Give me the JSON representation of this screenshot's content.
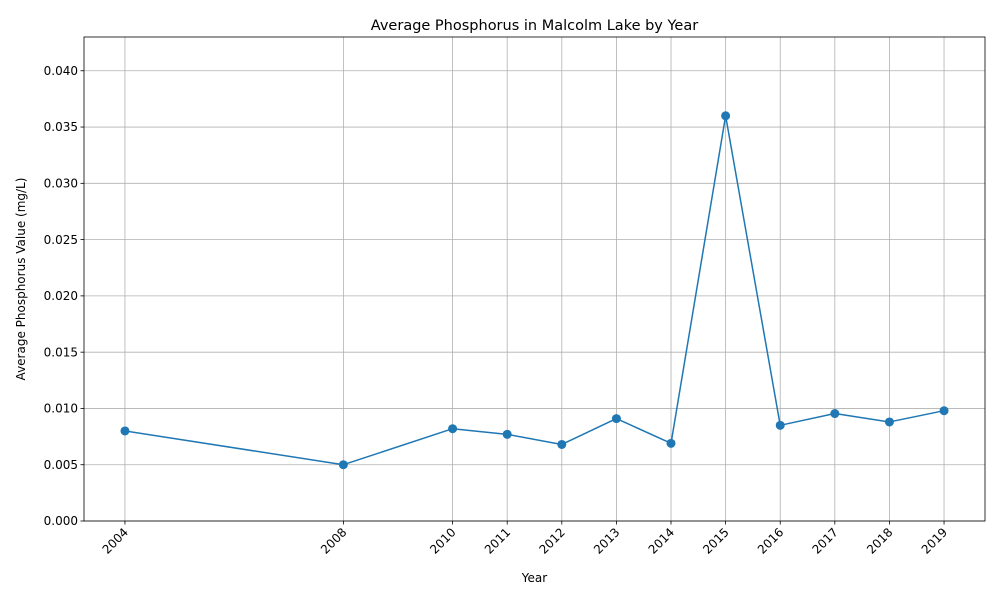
{
  "chart_data": {
    "type": "line",
    "title": "Average Phosphorus in Malcolm Lake by Year",
    "xlabel": "Year",
    "ylabel": "Average Phosphorus Value (mg/L)",
    "x": [
      2004,
      2008,
      2010,
      2011,
      2012,
      2013,
      2014,
      2015,
      2016,
      2017,
      2018,
      2019
    ],
    "x_tick_labels": [
      "2004",
      "2008",
      "2010",
      "2011",
      "2012",
      "2013",
      "2014",
      "2015",
      "2016",
      "2017",
      "2018",
      "2019"
    ],
    "series": [
      {
        "values": [
          0.008,
          0.005,
          0.0082,
          0.0077,
          0.0068,
          0.0091,
          0.0069,
          0.036,
          0.0085,
          0.00955,
          0.0088,
          0.0098
        ],
        "color": "#1f77b4"
      }
    ],
    "ylim": [
      0,
      0.043
    ],
    "xlim": [
      2003.25,
      2019.75
    ],
    "y_ticks": [
      0,
      0.005,
      0.01,
      0.015,
      0.02,
      0.025,
      0.03,
      0.035,
      0.04
    ],
    "y_tick_labels": [
      "0.000",
      "0.005",
      "0.010",
      "0.015",
      "0.020",
      "0.025",
      "0.030",
      "0.035",
      "0.040"
    ],
    "grid": true,
    "markers": true
  }
}
